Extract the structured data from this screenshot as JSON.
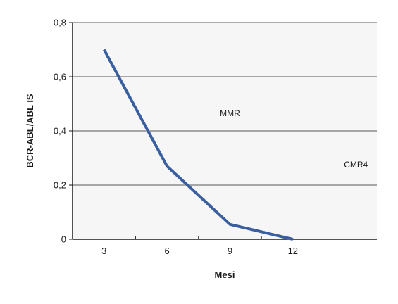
{
  "chart_data": {
    "type": "line",
    "title": "",
    "xlabel": "Mesi",
    "ylabel": "BCR-ABL/ABL IS",
    "x": [
      3,
      6,
      9,
      12
    ],
    "x_tick_labels": [
      "3",
      "6",
      "9",
      "12"
    ],
    "y_ticks": [
      0,
      0.2,
      0.4,
      0.6,
      0.8
    ],
    "y_tick_labels": [
      "0",
      "0,2",
      "0,4",
      "0,6",
      "0,8"
    ],
    "xlim": [
      1.5,
      16
    ],
    "ylim": [
      0,
      0.8
    ],
    "grid": "horizontal",
    "series": [
      {
        "values": [
          0.7,
          0.27,
          0.055,
          0.0
        ]
      }
    ],
    "annotations": [
      {
        "text": "MMR",
        "x": 9,
        "y": 0.455
      },
      {
        "text": "CMR4",
        "x": 15,
        "y": 0.265
      }
    ],
    "colors": {
      "line": "#3a5fa0",
      "plot_background": "#f6f6f6",
      "grid": "#555555",
      "axis": "#1a1a1a"
    }
  }
}
